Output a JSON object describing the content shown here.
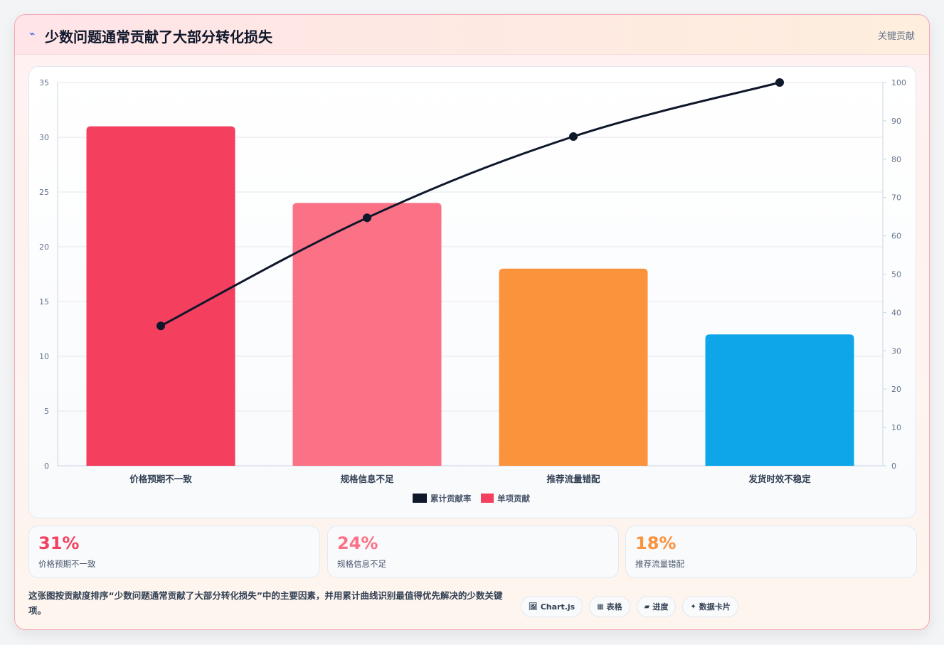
{
  "header": {
    "icon": "lightning-icon",
    "title": "少数问题通常贡献了大部分转化损失",
    "tag": "关键贡献"
  },
  "colors": {
    "bars": [
      "#f43f5e",
      "#fb7185",
      "#fb923c",
      "#0ea5e9"
    ],
    "line": "#0f172a"
  },
  "chart_data": {
    "type": "bar",
    "categories": [
      "价格预期不一致",
      "规格信息不足",
      "推荐流量错配",
      "发货时效不稳定"
    ],
    "series": [
      {
        "name": "单项贡献",
        "type": "bar",
        "axis": "left",
        "values": [
          31,
          24,
          18,
          12
        ]
      },
      {
        "name": "累计贡献率",
        "type": "line",
        "axis": "right",
        "values": [
          36.5,
          64.7,
          85.9,
          100
        ]
      }
    ],
    "ylim": [
      0,
      35
    ],
    "y_ticks": [
      "0",
      "5",
      "10",
      "15",
      "20",
      "25",
      "30",
      "35"
    ],
    "y2lim": [
      0,
      100
    ],
    "y2_ticks": [
      "0",
      "10",
      "20",
      "30",
      "40",
      "50",
      "60",
      "70",
      "80",
      "90",
      "100"
    ],
    "grid": true,
    "legend_position": "bottom"
  },
  "stats": [
    {
      "value": "31%",
      "label": "价格预期不一致",
      "color": "#f43f5e"
    },
    {
      "value": "24%",
      "label": "规格信息不足",
      "color": "#fb7185"
    },
    {
      "value": "18%",
      "label": "推荐流量错配",
      "color": "#fb923c"
    }
  ],
  "footnote": "这张图按贡献度排序“少数问题通常贡献了大部分转化损失”中的主要因素，并用累计曲线识别最值得优先解决的少数关键项。",
  "chips": [
    {
      "icon": "🖼",
      "label": "Chart.js"
    },
    {
      "icon": "▦",
      "label": "表格"
    },
    {
      "icon": "▰",
      "label": "进度"
    },
    {
      "icon": "✦",
      "label": "数据卡片"
    }
  ]
}
